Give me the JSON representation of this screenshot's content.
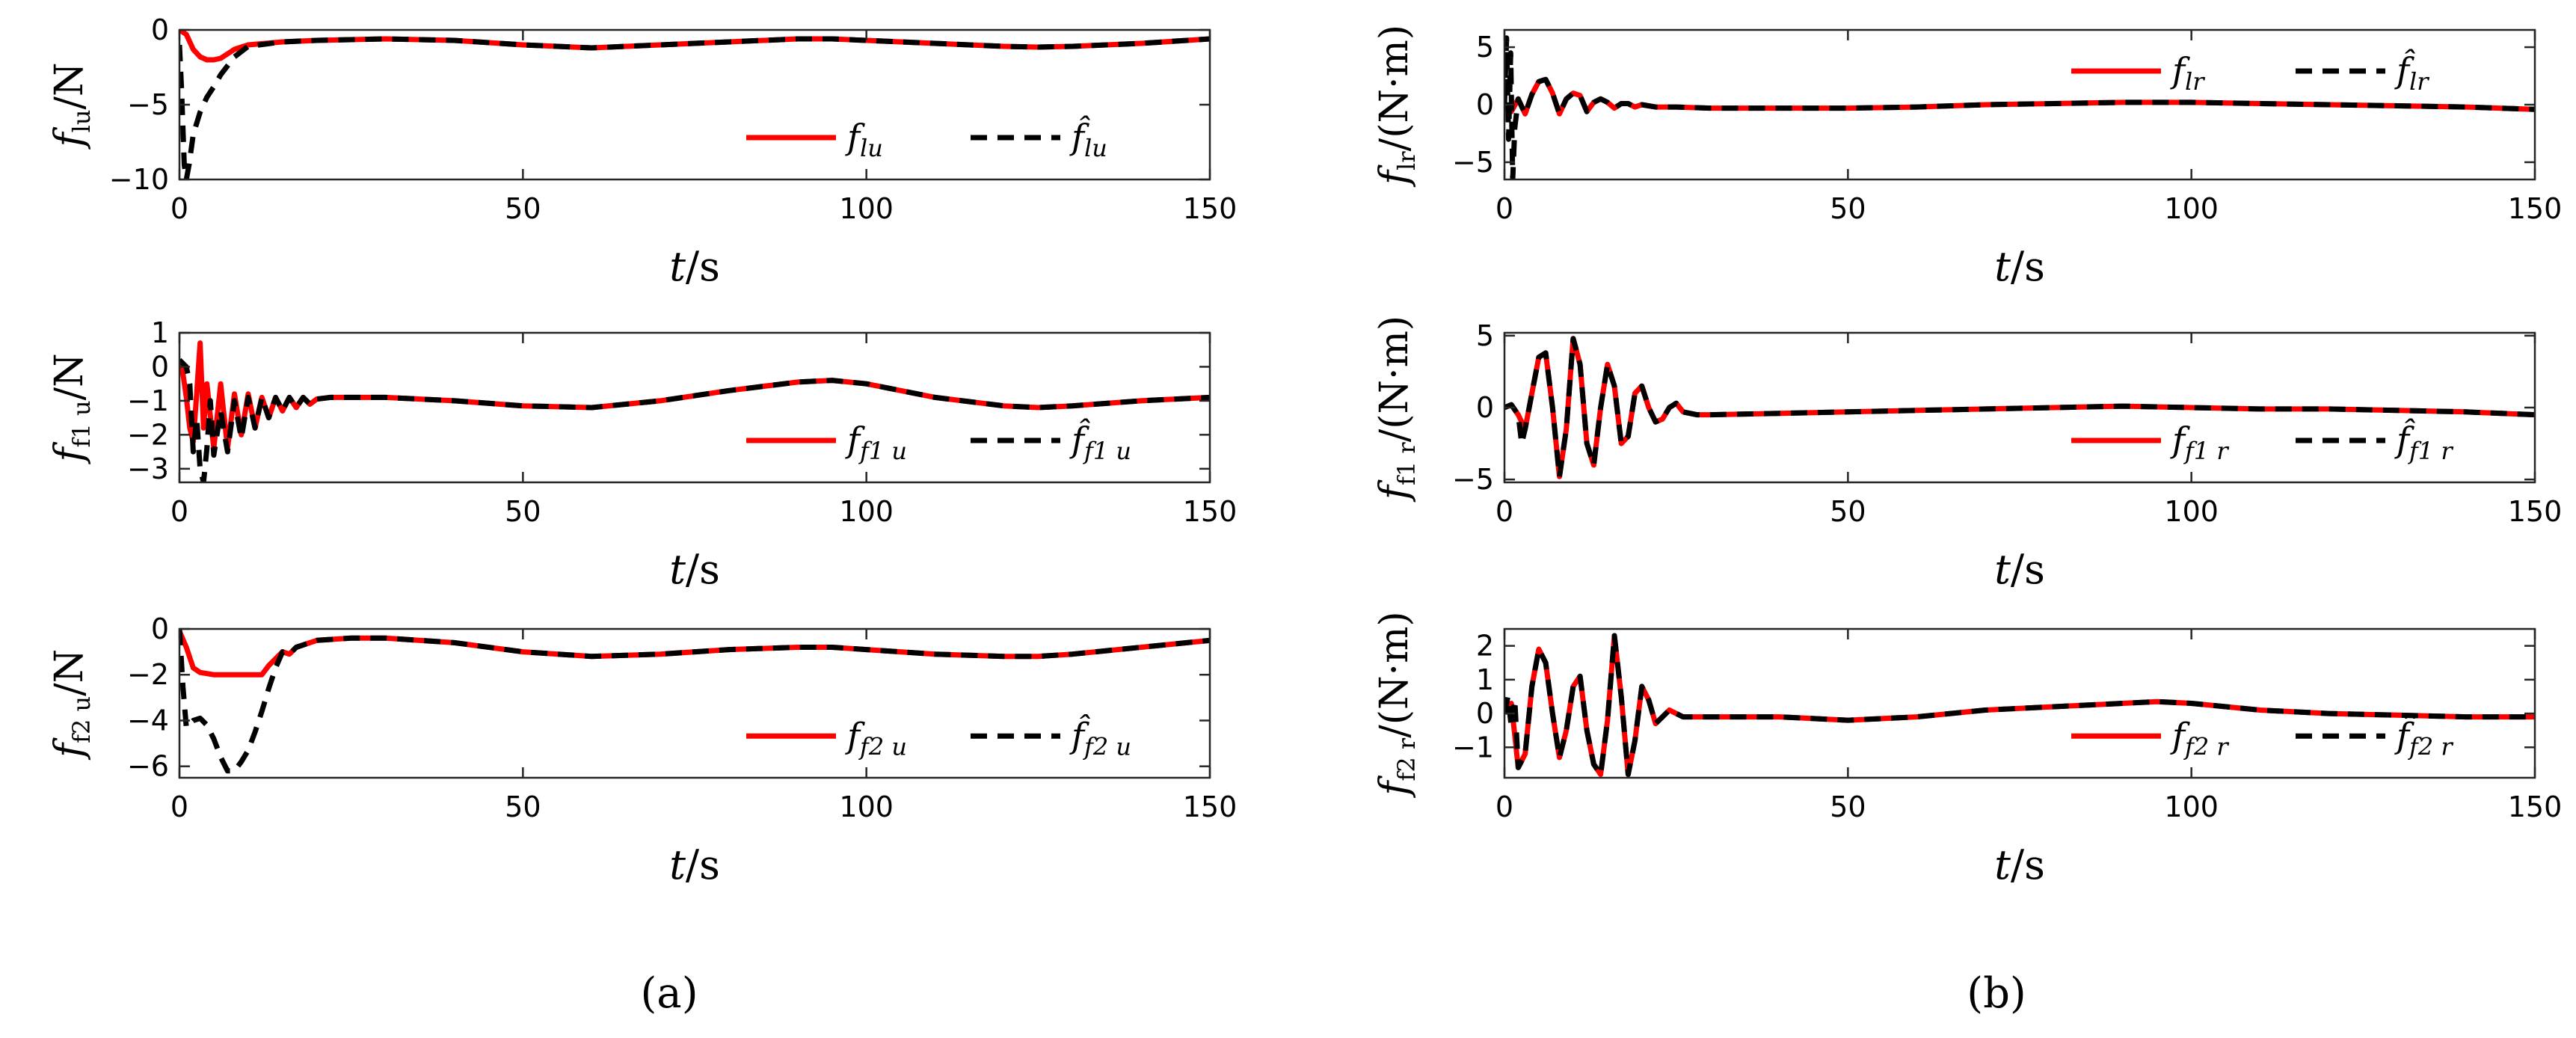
{
  "figure": {
    "caption_a": "(a)",
    "caption_b": "(b)"
  },
  "chart_data": [
    {
      "type": "line",
      "id": "a1",
      "ylabel": "f_{lu}/N",
      "xlabel": "t/s",
      "xlim": [
        0,
        150
      ],
      "ylim": [
        -10,
        0
      ],
      "xticks": [
        0,
        50,
        100,
        150
      ],
      "yticks": [
        0,
        -5,
        -10
      ],
      "legend": [
        "f_{lu}",
        "f̂_{lu}"
      ],
      "series": [
        {
          "name": "f_{lu}",
          "color": "#ff0000",
          "style": "solid",
          "x": [
            0,
            1,
            2,
            3,
            4,
            5,
            6,
            7,
            8,
            10,
            15,
            20,
            30,
            40,
            50,
            60,
            70,
            80,
            90,
            95,
            100,
            110,
            120,
            125,
            130,
            140,
            150
          ],
          "y": [
            0,
            -0.3,
            -1.3,
            -1.8,
            -2.0,
            -2.0,
            -1.9,
            -1.6,
            -1.3,
            -1.0,
            -0.8,
            -0.7,
            -0.6,
            -0.7,
            -1.0,
            -1.2,
            -1.0,
            -0.8,
            -0.6,
            -0.6,
            -0.7,
            -0.9,
            -1.1,
            -1.15,
            -1.1,
            -0.9,
            -0.6
          ]
        },
        {
          "name": "f̂_{lu}",
          "color": "#000000",
          "style": "dashed",
          "x": [
            0,
            0.3,
            0.7,
            1.0,
            1.4,
            2,
            3,
            4,
            5,
            6,
            7,
            8,
            10,
            15,
            20,
            30,
            40,
            50,
            60,
            70,
            80,
            90,
            95,
            100,
            110,
            120,
            125,
            130,
            140,
            150
          ],
          "y": [
            -1,
            -4,
            -9,
            -10,
            -9,
            -7,
            -5.5,
            -4.5,
            -3.8,
            -3.0,
            -2.4,
            -1.8,
            -1.1,
            -0.8,
            -0.7,
            -0.6,
            -0.7,
            -1.0,
            -1.2,
            -1.0,
            -0.8,
            -0.6,
            -0.6,
            -0.7,
            -0.9,
            -1.1,
            -1.15,
            -1.1,
            -0.9,
            -0.6
          ]
        }
      ]
    },
    {
      "type": "line",
      "id": "a2",
      "ylabel": "f_{f1u}/N",
      "xlabel": "t/s",
      "xlim": [
        0,
        150
      ],
      "ylim": [
        -3.4,
        1
      ],
      "xticks": [
        0,
        50,
        100,
        150
      ],
      "yticks": [
        1,
        0,
        -1,
        -2,
        -3
      ],
      "legend": [
        "f_{f1u}",
        "f̂_{f1u}"
      ],
      "series": [
        {
          "name": "f_{f1u}",
          "color": "#ff0000",
          "style": "solid",
          "x": [
            0,
            0.5,
            1,
            1.5,
            2,
            2.5,
            3,
            3.5,
            4,
            5,
            6,
            7,
            8,
            9,
            10,
            11,
            12,
            13,
            14,
            15,
            16,
            17,
            18,
            19,
            20,
            22,
            25,
            30,
            40,
            50,
            60,
            70,
            80,
            90,
            95,
            100,
            110,
            120,
            125,
            130,
            140,
            150
          ],
          "y": [
            0.2,
            -0.2,
            -0.9,
            -1.8,
            -2.2,
            -0.8,
            0.7,
            -1.8,
            -0.5,
            -2.4,
            -0.5,
            -2.4,
            -0.8,
            -2.0,
            -0.8,
            -1.8,
            -0.9,
            -1.5,
            -0.9,
            -1.3,
            -0.9,
            -1.2,
            -0.9,
            -1.1,
            -0.95,
            -0.9,
            -0.9,
            -0.9,
            -1.0,
            -1.15,
            -1.2,
            -1.0,
            -0.7,
            -0.45,
            -0.4,
            -0.5,
            -0.9,
            -1.15,
            -1.2,
            -1.15,
            -1.0,
            -0.9
          ]
        },
        {
          "name": "f̂_{f1u}",
          "color": "#000000",
          "style": "dashed",
          "x": [
            0,
            1,
            1.5,
            2,
            2.5,
            3,
            3.5,
            4,
            4.5,
            5,
            6,
            7,
            8,
            9,
            10,
            11,
            12,
            13,
            14,
            15,
            16,
            17,
            18,
            19,
            20,
            22,
            25,
            30,
            40,
            50,
            60,
            70,
            80,
            90,
            95,
            100,
            110,
            120,
            125,
            130,
            140,
            150
          ],
          "y": [
            0.2,
            0,
            -0.5,
            -2.5,
            -1.5,
            -3.0,
            -3.4,
            -2.4,
            -1.0,
            -2.6,
            -1.3,
            -2.5,
            -1.0,
            -2.1,
            -0.9,
            -1.8,
            -0.9,
            -1.5,
            -0.9,
            -1.3,
            -0.9,
            -1.2,
            -0.9,
            -1.1,
            -0.95,
            -0.9,
            -0.9,
            -0.9,
            -1.0,
            -1.15,
            -1.2,
            -1.0,
            -0.7,
            -0.45,
            -0.4,
            -0.5,
            -0.9,
            -1.15,
            -1.2,
            -1.15,
            -1.0,
            -0.9
          ]
        }
      ]
    },
    {
      "type": "line",
      "id": "a3",
      "ylabel": "f_{f2u}/N",
      "xlabel": "t/s",
      "xlim": [
        0,
        150
      ],
      "ylim": [
        -6.5,
        0
      ],
      "xticks": [
        0,
        50,
        100,
        150
      ],
      "yticks": [
        0,
        -2,
        -4,
        -6
      ],
      "legend": [
        "f_{f2u}",
        "f̂_{f2u}"
      ],
      "series": [
        {
          "name": "f_{f2u}",
          "color": "#ff0000",
          "style": "solid",
          "x": [
            0,
            1,
            2,
            3,
            5,
            8,
            10,
            12,
            13,
            14,
            15,
            16,
            17,
            18,
            20,
            25,
            30,
            40,
            50,
            60,
            70,
            80,
            90,
            95,
            100,
            110,
            120,
            125,
            130,
            140,
            150
          ],
          "y": [
            -0.1,
            -0.8,
            -1.7,
            -1.9,
            -2.0,
            -2.0,
            -2.0,
            -2.0,
            -1.6,
            -1.3,
            -1.0,
            -1.1,
            -0.8,
            -0.7,
            -0.5,
            -0.4,
            -0.4,
            -0.6,
            -1.0,
            -1.2,
            -1.1,
            -0.9,
            -0.8,
            -0.8,
            -0.9,
            -1.1,
            -1.2,
            -1.2,
            -1.1,
            -0.8,
            -0.5
          ]
        },
        {
          "name": "f̂_{f2u}",
          "color": "#000000",
          "style": "dashed",
          "x": [
            0,
            0.5,
            1,
            2,
            3,
            4,
            5,
            6,
            7,
            8,
            9,
            10,
            11,
            12,
            13,
            14,
            15,
            16,
            17,
            18,
            20,
            25,
            30,
            40,
            50,
            60,
            70,
            80,
            90,
            95,
            100,
            110,
            120,
            125,
            130,
            140,
            150
          ],
          "y": [
            0,
            -2.5,
            -4.3,
            -4.0,
            -3.9,
            -4.2,
            -4.8,
            -5.6,
            -6.2,
            -6.2,
            -5.8,
            -5.3,
            -4.5,
            -3.6,
            -2.6,
            -1.7,
            -1.0,
            -1.1,
            -0.8,
            -0.7,
            -0.5,
            -0.4,
            -0.4,
            -0.6,
            -1.0,
            -1.2,
            -1.1,
            -0.9,
            -0.8,
            -0.8,
            -0.9,
            -1.1,
            -1.2,
            -1.2,
            -1.1,
            -0.8,
            -0.5
          ]
        }
      ]
    },
    {
      "type": "line",
      "id": "b1",
      "ylabel": "f_{lr}/(N·m)",
      "xlabel": "t/s",
      "xlim": [
        0,
        150
      ],
      "ylim": [
        -6.5,
        6.5
      ],
      "xticks": [
        0,
        50,
        100,
        150
      ],
      "yticks": [
        5,
        0,
        -5
      ],
      "legend": [
        "f_{lr}",
        "f̂_{lr}"
      ],
      "series": [
        {
          "name": "f_{lr}",
          "color": "#ff0000",
          "style": "solid",
          "x": [
            0,
            1,
            2,
            3,
            4,
            5,
            6,
            7,
            8,
            9,
            10,
            11,
            12,
            13,
            14,
            15,
            16,
            17,
            18,
            19,
            20,
            22,
            25,
            30,
            40,
            50,
            60,
            70,
            80,
            90,
            100,
            110,
            120,
            130,
            140,
            150
          ],
          "y": [
            0,
            -0.6,
            0.5,
            -0.8,
            0.9,
            2.0,
            2.2,
            1.0,
            -0.8,
            0.5,
            1.0,
            0.8,
            -0.6,
            0.2,
            0.5,
            0.2,
            -0.3,
            0.1,
            0.1,
            -0.2,
            0,
            -0.2,
            -0.2,
            -0.3,
            -0.3,
            -0.3,
            -0.2,
            0,
            0.1,
            0.2,
            0.2,
            0.1,
            0,
            -0.1,
            -0.2,
            -0.4
          ]
        },
        {
          "name": "f̂_{lr}",
          "color": "#000000",
          "style": "dashed",
          "x": [
            0,
            0.3,
            0.6,
            0.9,
            1.2,
            1.5,
            2,
            3,
            4,
            5,
            6,
            7,
            8,
            9,
            10,
            11,
            12,
            13,
            14,
            15,
            16,
            17,
            18,
            19,
            20,
            22,
            25,
            30,
            40,
            50,
            60,
            70,
            80,
            90,
            100,
            110,
            120,
            130,
            140,
            150
          ],
          "y": [
            0,
            5.8,
            -3,
            4.5,
            -6.5,
            -2,
            0.5,
            -0.8,
            0.9,
            2.0,
            2.2,
            1.0,
            -0.8,
            0.5,
            1.0,
            0.8,
            -0.6,
            0.2,
            0.5,
            0.2,
            -0.3,
            0.1,
            0.1,
            -0.2,
            0,
            -0.2,
            -0.2,
            -0.3,
            -0.3,
            -0.3,
            -0.2,
            0,
            0.1,
            0.2,
            0.2,
            0.1,
            0,
            -0.1,
            -0.2,
            -0.4
          ]
        }
      ]
    },
    {
      "type": "line",
      "id": "b2",
      "ylabel": "f_{f1r}/(N·m)",
      "xlabel": "t/s",
      "xlim": [
        0,
        150
      ],
      "ylim": [
        -5.2,
        5.2
      ],
      "xticks": [
        0,
        50,
        100,
        150
      ],
      "yticks": [
        5,
        0,
        -5
      ],
      "legend": [
        "f_{f1r}",
        "f̂_{f1r}"
      ],
      "series": [
        {
          "name": "f_{f1r}",
          "color": "#ff0000",
          "style": "solid",
          "x": [
            0,
            1,
            2,
            3,
            4,
            5,
            6,
            7,
            8,
            9,
            10,
            11,
            12,
            13,
            14,
            15,
            16,
            17,
            18,
            19,
            20,
            21,
            22,
            23,
            24,
            25,
            26,
            28,
            30,
            40,
            50,
            60,
            70,
            80,
            90,
            100,
            110,
            120,
            130,
            140,
            150
          ],
          "y": [
            0,
            0.2,
            -0.5,
            -1.5,
            1.0,
            3.5,
            3.8,
            0,
            -4.8,
            -1.5,
            4.8,
            3.0,
            -2.5,
            -4.0,
            0,
            3.0,
            1.5,
            -2.5,
            -2.0,
            1.0,
            1.5,
            0,
            -1.0,
            -0.8,
            0,
            0.3,
            -0.3,
            -0.5,
            -0.5,
            -0.4,
            -0.3,
            -0.2,
            -0.1,
            0,
            0.1,
            0,
            -0.1,
            -0.1,
            -0.2,
            -0.3,
            -0.5
          ]
        },
        {
          "name": "f̂_{f1r}",
          "color": "#000000",
          "style": "dashed",
          "x": [
            0,
            1,
            2,
            2.5,
            3,
            4,
            5,
            6,
            7,
            8,
            9,
            10,
            11,
            12,
            13,
            14,
            15,
            16,
            17,
            18,
            19,
            20,
            21,
            22,
            23,
            24,
            25,
            26,
            28,
            30,
            40,
            50,
            60,
            70,
            80,
            90,
            100,
            110,
            120,
            130,
            140,
            150
          ],
          "y": [
            0,
            0.2,
            -0.5,
            -2.5,
            -1.5,
            1.0,
            3.5,
            3.8,
            0,
            -4.8,
            -1.5,
            4.8,
            3.0,
            -2.5,
            -4.0,
            0,
            3.0,
            1.5,
            -2.5,
            -2.0,
            1.0,
            1.5,
            0,
            -1.0,
            -0.8,
            0,
            0.3,
            -0.3,
            -0.5,
            -0.5,
            -0.4,
            -0.3,
            -0.2,
            -0.1,
            0,
            0.1,
            0,
            -0.1,
            -0.1,
            -0.2,
            -0.3,
            -0.5
          ]
        }
      ]
    },
    {
      "type": "line",
      "id": "b3",
      "ylabel": "f_{f2r}/(N·m)",
      "xlabel": "t/s",
      "xlim": [
        0,
        150
      ],
      "ylim": [
        -1.9,
        2.5
      ],
      "xticks": [
        0,
        50,
        100,
        150
      ],
      "yticks": [
        2,
        1,
        0,
        -1
      ],
      "legend": [
        "f_{f2r}",
        "f̂_{f2r}"
      ],
      "series": [
        {
          "name": "f_{f2r}",
          "color": "#ff0000",
          "style": "solid",
          "x": [
            0,
            1,
            2,
            3,
            4,
            5,
            6,
            7,
            8,
            9,
            10,
            11,
            12,
            13,
            14,
            15,
            16,
            17,
            18,
            19,
            20,
            21,
            22,
            23,
            24,
            25,
            26,
            28,
            30,
            40,
            50,
            60,
            70,
            80,
            90,
            95,
            100,
            110,
            120,
            130,
            140,
            150
          ],
          "y": [
            0,
            0.3,
            -1.6,
            -1.2,
            0.8,
            1.9,
            1.5,
            0,
            -1.3,
            -0.5,
            0.8,
            1.1,
            -0.5,
            -1.5,
            -1.8,
            -0.2,
            2.3,
            0.5,
            -1.8,
            -0.8,
            0.8,
            0.4,
            -0.3,
            -0.1,
            0.1,
            0,
            -0.1,
            -0.1,
            -0.1,
            -0.1,
            -0.2,
            -0.1,
            0.1,
            0.2,
            0.3,
            0.35,
            0.3,
            0.1,
            0,
            -0.05,
            -0.1,
            -0.1
          ]
        },
        {
          "name": "f̂_{f2r}",
          "color": "#000000",
          "style": "dashed",
          "x": [
            0,
            0.5,
            1,
            1.5,
            2,
            3,
            4,
            5,
            6,
            7,
            8,
            9,
            10,
            11,
            12,
            13,
            14,
            15,
            16,
            17,
            18,
            19,
            20,
            21,
            22,
            23,
            24,
            25,
            26,
            28,
            30,
            40,
            50,
            60,
            70,
            80,
            90,
            95,
            100,
            110,
            120,
            130,
            140,
            150
          ],
          "y": [
            0,
            0.5,
            -0.4,
            0.4,
            -1.6,
            -1.2,
            0.8,
            1.9,
            1.5,
            0,
            -1.3,
            -0.5,
            0.8,
            1.1,
            -0.5,
            -1.5,
            -1.8,
            -0.2,
            2.3,
            0.5,
            -1.8,
            -0.8,
            0.8,
            0.4,
            -0.3,
            -0.1,
            0.1,
            0,
            -0.1,
            -0.1,
            -0.1,
            -0.1,
            -0.2,
            -0.1,
            0.1,
            0.2,
            0.3,
            0.35,
            0.3,
            0.1,
            0,
            -0.05,
            -0.1,
            -0.1
          ]
        }
      ]
    }
  ]
}
